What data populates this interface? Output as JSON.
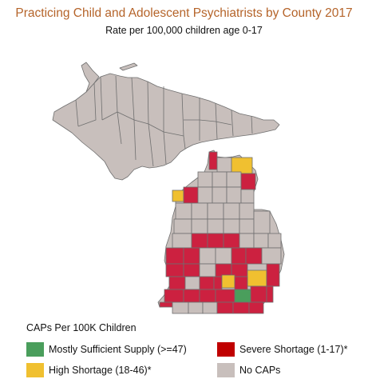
{
  "title": "Practicing Child and Adolescent Psychiatrists by County 2017",
  "subtitle": "Rate per 100,000 children age 0-17",
  "legend": {
    "title": "CAPs Per 100K Children",
    "items": [
      {
        "label": "Mostly Sufficient Supply (>=47)",
        "color": "#4a9e5c"
      },
      {
        "label": "Severe Shortage (1-17)*",
        "color": "#c00000"
      },
      {
        "label": "High Shortage (18-46)*",
        "color": "#f0c030"
      },
      {
        "label": "No CAPs",
        "color": "#c8bfbc"
      }
    ]
  },
  "colors": {
    "sufficient": "#4a9e5c",
    "severe": "#cc2140",
    "high": "#f0c030",
    "none": "#c8bfbc",
    "border": "#6f6f6f"
  }
}
